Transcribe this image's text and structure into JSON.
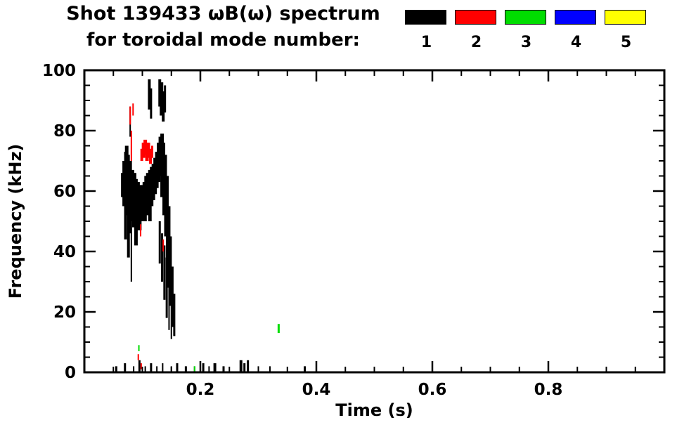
{
  "header": {
    "title_line1": "Shot 139433 ωB(ω) spectrum",
    "title_line2": "for toroidal mode number:"
  },
  "legend": {
    "entries": [
      {
        "label": "1",
        "color": "#000000"
      },
      {
        "label": "2",
        "color": "#ff0000"
      },
      {
        "label": "3",
        "color": "#00dd00"
      },
      {
        "label": "4",
        "color": "#0000ff"
      },
      {
        "label": "5",
        "color": "#ffff00"
      }
    ]
  },
  "chart_data": {
    "type": "scatter",
    "title": "Shot 139433 ωB(ω) spectrum for toroidal mode number: 1 2 3 4 5",
    "xlabel": "Time (s)",
    "ylabel": "Frequency (kHz)",
    "xlim": [
      0,
      1
    ],
    "ylim": [
      0,
      100
    ],
    "grid": false,
    "legend_position": "top-right",
    "xticks": {
      "major": [
        0.2,
        0.4,
        0.6,
        0.8
      ],
      "major_labels": [
        "0.2",
        "0.4",
        "0.6",
        "0.8"
      ],
      "minor_step": 0.05
    },
    "yticks": {
      "major": [
        0,
        20,
        40,
        60,
        80,
        100
      ],
      "major_labels": [
        "0",
        "20",
        "40",
        "60",
        "80",
        "100"
      ],
      "minor_step": 5
    },
    "modes": [
      {
        "n": "1",
        "color": "#000000"
      },
      {
        "n": "2",
        "color": "#ff0000"
      },
      {
        "n": "3",
        "color": "#00dd00"
      },
      {
        "n": "4",
        "color": "#0000ff"
      },
      {
        "n": "5",
        "color": "#ffff00"
      }
    ],
    "segment_format": "[time_s, freq_lo_kHz, freq_hi_kHz, width_px]",
    "series": [
      {
        "name": "n=1",
        "color": "#000000",
        "segments": [
          [
            0.065,
            58,
            66,
            3
          ],
          [
            0.068,
            55,
            70,
            4
          ],
          [
            0.071,
            44,
            73,
            4
          ],
          [
            0.073,
            52,
            75,
            5
          ],
          [
            0.076,
            38,
            72,
            4
          ],
          [
            0.079,
            46,
            70,
            5
          ],
          [
            0.081,
            30,
            60,
            2
          ],
          [
            0.083,
            50,
            67,
            5
          ],
          [
            0.086,
            48,
            66,
            6
          ],
          [
            0.089,
            42,
            64,
            5
          ],
          [
            0.092,
            50,
            63,
            6
          ],
          [
            0.095,
            47,
            62,
            6
          ],
          [
            0.098,
            50,
            61,
            6
          ],
          [
            0.101,
            51,
            62,
            6
          ],
          [
            0.104,
            50,
            63,
            6
          ],
          [
            0.107,
            52,
            65,
            6
          ],
          [
            0.11,
            53,
            66,
            6
          ],
          [
            0.113,
            50,
            67,
            5
          ],
          [
            0.116,
            55,
            68,
            5
          ],
          [
            0.119,
            57,
            69,
            5
          ],
          [
            0.122,
            59,
            71,
            5
          ],
          [
            0.125,
            61,
            73,
            5
          ],
          [
            0.128,
            63,
            76,
            5
          ],
          [
            0.131,
            65,
            78,
            5
          ],
          [
            0.134,
            58,
            79,
            5
          ],
          [
            0.137,
            52,
            76,
            4
          ],
          [
            0.14,
            45,
            72,
            4
          ],
          [
            0.143,
            35,
            65,
            4
          ],
          [
            0.146,
            28,
            55,
            4
          ],
          [
            0.149,
            22,
            45,
            3
          ],
          [
            0.152,
            15,
            35,
            3
          ],
          [
            0.155,
            12,
            26,
            3
          ],
          [
            0.079,
            78,
            88,
            2
          ],
          [
            0.112,
            87,
            97,
            4
          ],
          [
            0.115,
            84,
            94,
            3
          ],
          [
            0.13,
            88,
            97,
            4
          ],
          [
            0.133,
            85,
            96,
            5
          ],
          [
            0.136,
            83,
            93,
            4
          ],
          [
            0.139,
            86,
            95,
            3
          ],
          [
            0.13,
            36,
            50,
            3
          ],
          [
            0.134,
            30,
            46,
            3
          ],
          [
            0.138,
            24,
            42,
            3
          ],
          [
            0.142,
            18,
            38,
            3
          ],
          [
            0.146,
            14,
            30,
            2
          ],
          [
            0.15,
            11,
            24,
            2
          ],
          [
            0.055,
            0,
            2,
            3
          ],
          [
            0.07,
            0,
            3,
            3
          ],
          [
            0.085,
            0,
            2,
            2
          ],
          [
            0.095,
            0,
            4,
            3
          ],
          [
            0.105,
            0,
            2,
            2
          ],
          [
            0.115,
            0,
            3,
            3
          ],
          [
            0.125,
            0,
            2,
            2
          ],
          [
            0.135,
            0,
            3,
            2
          ],
          [
            0.15,
            0,
            2,
            2
          ],
          [
            0.16,
            0,
            3,
            3
          ],
          [
            0.175,
            0,
            2,
            3
          ],
          [
            0.19,
            0,
            2,
            2
          ],
          [
            0.205,
            0,
            3,
            3
          ],
          [
            0.215,
            0,
            2,
            2
          ],
          [
            0.225,
            0,
            3,
            4
          ],
          [
            0.24,
            0,
            2,
            3
          ],
          [
            0.27,
            0,
            4,
            4
          ],
          [
            0.276,
            0,
            3,
            3
          ],
          [
            0.282,
            0,
            4,
            3
          ],
          [
            0.3,
            0,
            2,
            2
          ],
          [
            0.32,
            0,
            2,
            2
          ],
          [
            0.38,
            0,
            2,
            3
          ]
        ]
      },
      {
        "name": "n=2",
        "color": "#ff0000",
        "segments": [
          [
            0.079,
            82,
            88,
            2
          ],
          [
            0.081,
            70,
            80,
            2
          ],
          [
            0.084,
            85,
            89,
            2
          ],
          [
            0.099,
            70,
            74,
            4
          ],
          [
            0.102,
            71,
            76,
            5
          ],
          [
            0.105,
            72,
            77,
            5
          ],
          [
            0.108,
            70,
            76,
            5
          ],
          [
            0.111,
            71,
            76,
            4
          ],
          [
            0.114,
            69,
            74,
            4
          ],
          [
            0.117,
            71,
            75,
            3
          ],
          [
            0.097,
            45,
            49,
            2
          ],
          [
            0.136,
            40,
            44,
            2
          ],
          [
            0.093,
            4,
            6,
            2
          ],
          [
            0.098,
            1,
            3,
            2
          ]
        ]
      },
      {
        "name": "n=3",
        "color": "#00dd00",
        "segments": [
          [
            0.094,
            7,
            9,
            2
          ],
          [
            0.19,
            0,
            2,
            2
          ],
          [
            0.335,
            13,
            16,
            3
          ]
        ]
      },
      {
        "name": "n=4",
        "color": "#0000ff",
        "segments": []
      },
      {
        "name": "n=5",
        "color": "#ffff00",
        "segments": []
      }
    ]
  }
}
